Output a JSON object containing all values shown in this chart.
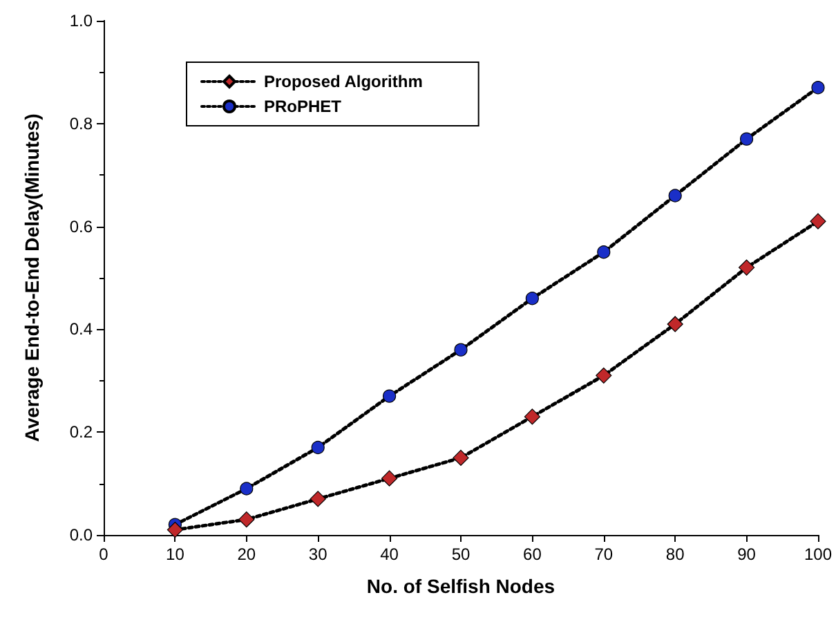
{
  "chart_data": {
    "type": "line",
    "xlabel": "No. of Selfish Nodes",
    "ylabel": "Average End-to-End Delay(Minutes)",
    "x": [
      10,
      20,
      30,
      40,
      50,
      60,
      70,
      80,
      90,
      100
    ],
    "series": [
      {
        "name": "Proposed Algorithm",
        "color": "#c0282a",
        "marker": "diamond",
        "values": [
          0.01,
          0.03,
          0.07,
          0.11,
          0.15,
          0.23,
          0.31,
          0.41,
          0.52,
          0.61
        ]
      },
      {
        "name": "PRoPHET",
        "color": "#1a2fc8",
        "marker": "circle",
        "values": [
          0.02,
          0.09,
          0.17,
          0.27,
          0.36,
          0.46,
          0.55,
          0.66,
          0.77,
          0.87
        ]
      }
    ],
    "xlim": [
      0,
      100
    ],
    "xticks": [
      0,
      10,
      20,
      30,
      40,
      50,
      60,
      70,
      80,
      90,
      100
    ],
    "ylim": [
      0,
      1
    ],
    "yticks": [
      {
        "value": 0,
        "label": "0.0"
      },
      {
        "value": 0.2,
        "label": "0.2"
      },
      {
        "value": 0.4,
        "label": "0.4"
      },
      {
        "value": 0.6,
        "label": "0.6"
      },
      {
        "value": 0.8,
        "label": "0.8"
      },
      {
        "value": 1,
        "label": "1.0"
      }
    ],
    "line_style": "dotted",
    "grid": false,
    "legend": "top left"
  }
}
